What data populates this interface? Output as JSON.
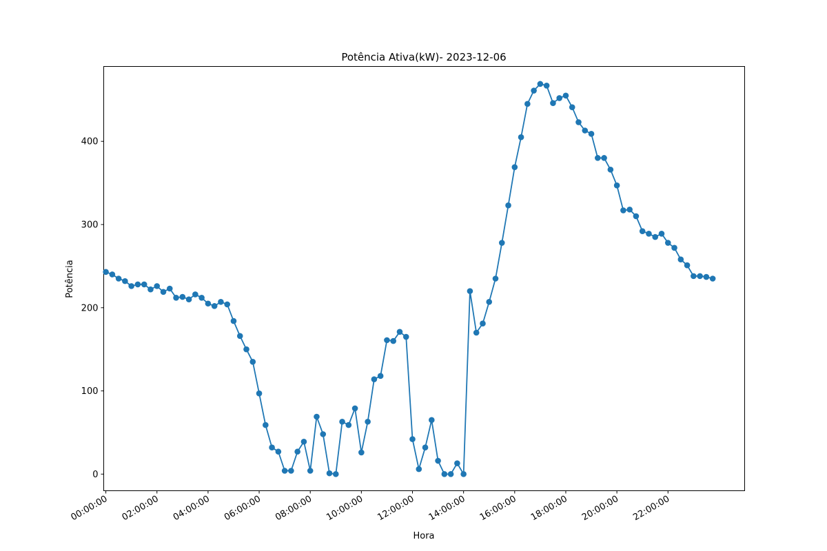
{
  "chart_data": {
    "type": "line",
    "title": "Potência Ativa(kW)- 2023-12-06",
    "xlabel": "Hora",
    "ylabel": "Potência",
    "color": "#1f77b4",
    "marker": "circle",
    "grid": false,
    "legend": "none",
    "xlim": [
      "23:55:00",
      "25:00:00"
    ],
    "ylim": [
      -20,
      490
    ],
    "x_ticks": [
      "00:00:00",
      "02:00:00",
      "04:00:00",
      "06:00:00",
      "08:00:00",
      "10:00:00",
      "12:00:00",
      "14:00:00",
      "16:00:00",
      "18:00:00",
      "20:00:00",
      "22:00:00"
    ],
    "y_ticks": [
      0,
      100,
      200,
      300,
      400
    ],
    "series": [
      {
        "x": [
          "00:00:00",
          "00:15:00",
          "00:30:00",
          "00:45:00",
          "01:00:00",
          "01:15:00",
          "01:30:00",
          "01:45:00",
          "02:00:00",
          "02:15:00",
          "02:30:00",
          "02:45:00",
          "03:00:00",
          "03:15:00",
          "03:30:00",
          "03:45:00",
          "04:00:00",
          "04:15:00",
          "04:30:00",
          "04:45:00",
          "05:00:00",
          "05:15:00",
          "05:30:00",
          "05:45:00",
          "06:00:00",
          "06:15:00",
          "06:30:00",
          "06:45:00",
          "07:00:00",
          "07:15:00",
          "07:30:00",
          "07:45:00",
          "08:00:00",
          "08:15:00",
          "08:30:00",
          "08:45:00",
          "09:00:00",
          "09:15:00",
          "09:30:00",
          "09:45:00",
          "10:00:00",
          "10:15:00",
          "10:30:00",
          "10:45:00",
          "11:00:00",
          "11:15:00",
          "11:30:00",
          "11:45:00",
          "12:00:00",
          "12:15:00",
          "12:30:00",
          "12:45:00",
          "13:00:00",
          "13:15:00",
          "13:30:00",
          "13:45:00",
          "14:00:00",
          "14:15:00",
          "14:30:00",
          "14:45:00",
          "15:00:00",
          "15:15:00",
          "15:30:00",
          "15:45:00",
          "16:00:00",
          "16:15:00",
          "16:30:00",
          "16:45:00",
          "17:00:00",
          "17:15:00",
          "17:30:00",
          "17:45:00",
          "18:00:00",
          "18:15:00",
          "18:30:00",
          "18:45:00",
          "19:00:00",
          "19:15:00",
          "19:30:00",
          "19:45:00",
          "20:00:00",
          "20:15:00",
          "20:30:00",
          "20:45:00",
          "21:00:00",
          "21:15:00",
          "21:30:00",
          "21:45:00",
          "22:00:00",
          "22:15:00",
          "22:30:00",
          "22:45:00",
          "23:00:00",
          "23:15:00",
          "23:30:00",
          "23:45:00"
        ],
        "values": [
          243,
          240,
          235,
          232,
          226,
          228,
          228,
          222,
          226,
          219,
          223,
          212,
          213,
          210,
          216,
          212,
          205,
          202,
          207,
          204,
          184,
          166,
          150,
          135,
          97,
          59,
          32,
          27,
          4,
          4,
          27,
          39,
          4,
          69,
          48,
          1,
          0,
          63,
          59,
          79,
          26,
          63,
          114,
          118,
          161,
          160,
          171,
          165,
          42,
          6,
          32,
          65,
          16,
          0,
          0,
          13,
          0,
          220,
          170,
          181,
          207,
          235,
          278,
          323,
          369,
          405,
          445,
          461,
          469,
          467,
          446,
          452,
          455,
          441,
          423,
          413,
          409,
          380,
          380,
          366,
          347,
          317,
          318,
          310,
          292,
          289,
          285,
          289,
          278,
          272,
          258,
          251,
          238,
          238,
          237,
          235
        ]
      }
    ]
  }
}
